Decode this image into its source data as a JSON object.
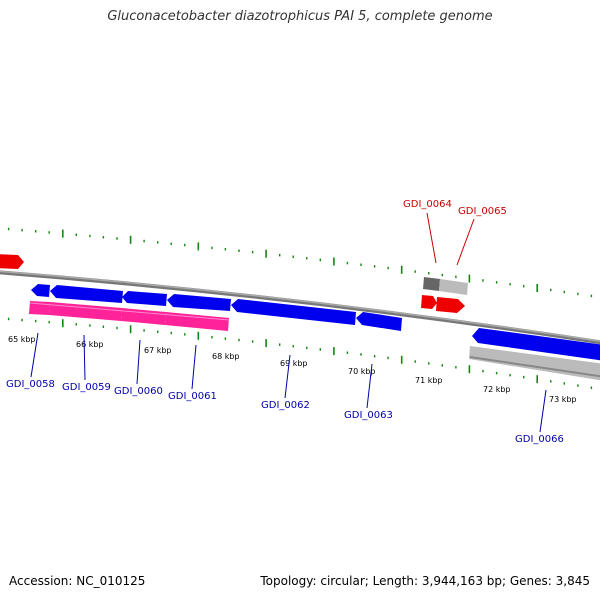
{
  "title": "Gluconacetobacter diazotrophicus PAI 5, complete genome",
  "accession_text": "Accession: NC_010125",
  "summary_text": "Topology: circular; Length: 3,944,163 bp; Genes: 3,845",
  "colors": {
    "forward_gene": "#ee0000",
    "reverse_gene": "#0000ee",
    "rna_magenta": "#ff2299",
    "grey_feature": "#bbbbbb",
    "dark_grey_feature": "#666666",
    "backbone": "#888888",
    "ticks": "#118811",
    "blue_label": "#0000aa",
    "red_label": "#cc0000"
  },
  "kbp_labels": [
    "65 kbp",
    "66 kbp",
    "67 kbp",
    "68 kbp",
    "69 kbp",
    "70 kbp",
    "71 kbp",
    "72 kbp",
    "73 kbp"
  ],
  "gene_labels": {
    "reverse": [
      "GDI_0058",
      "GDI_0059",
      "GDI_0060",
      "GDI_0061",
      "GDI_0062",
      "GDI_0063",
      "GDI_0066"
    ],
    "forward": [
      "GDI_0064",
      "GDI_0065"
    ]
  }
}
